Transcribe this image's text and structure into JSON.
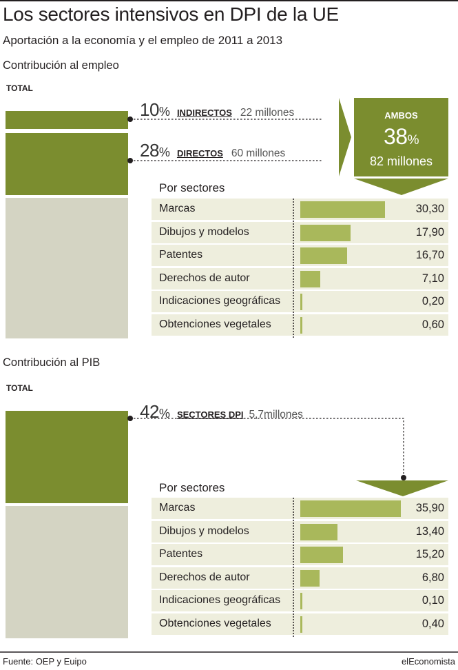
{
  "title": "Los sectores intensivos en DPI de la UE",
  "subtitle": "Aportación a la economía y el empleo de 2011 a 2013",
  "colors": {
    "dark_green": "#7b8d2f",
    "bar_green": "#a9b85b",
    "row_bg": "#eeeedd",
    "rest_gray": "#d4d4c3"
  },
  "chart_data": [
    {
      "type": "bar",
      "title": "Contribución al empleo",
      "total_label": "TOTAL",
      "callouts": [
        {
          "pct": "10",
          "pct_sign": "%",
          "label": "INDIRECTOS",
          "amount": "22 millones"
        },
        {
          "pct": "28",
          "pct_sign": "%",
          "label": "DIRECTOS",
          "amount": "60 millones"
        }
      ],
      "combined": {
        "label": "AMBOS",
        "pct": "38",
        "pct_sign": "%",
        "amount": "82 millones"
      },
      "sector_title": "Por sectores",
      "categories": [
        "Marcas",
        "Dibujos y modelos",
        "Patentes",
        "Derechos de autor",
        "Indicaciones geográficas",
        "Obtenciones vegetales"
      ],
      "values": [
        30.3,
        17.9,
        16.7,
        7.1,
        0.2,
        0.6
      ],
      "value_labels": [
        "30,30",
        "17,90",
        "16,70",
        "7,10",
        "0,20",
        "0,60"
      ]
    },
    {
      "type": "bar",
      "title": "Contribución al PIB",
      "total_label": "TOTAL",
      "callouts": [
        {
          "pct": "42",
          "pct_sign": "%",
          "label": "SECTORES DPI",
          "amount": "5,7millones"
        }
      ],
      "sector_title": "Por sectores",
      "categories": [
        "Marcas",
        "Dibujos y modelos",
        "Patentes",
        "Derechos de autor",
        "Indicaciones geográficas",
        "Obtenciones vegetales"
      ],
      "values": [
        35.9,
        13.4,
        15.2,
        6.8,
        0.1,
        0.4
      ],
      "value_labels": [
        "35,90",
        "13,40",
        "15,20",
        "6,80",
        "0,10",
        "0,40"
      ]
    }
  ],
  "footer": {
    "source": "Fuente: OEP y Euipo",
    "brand": "elEconomista"
  }
}
